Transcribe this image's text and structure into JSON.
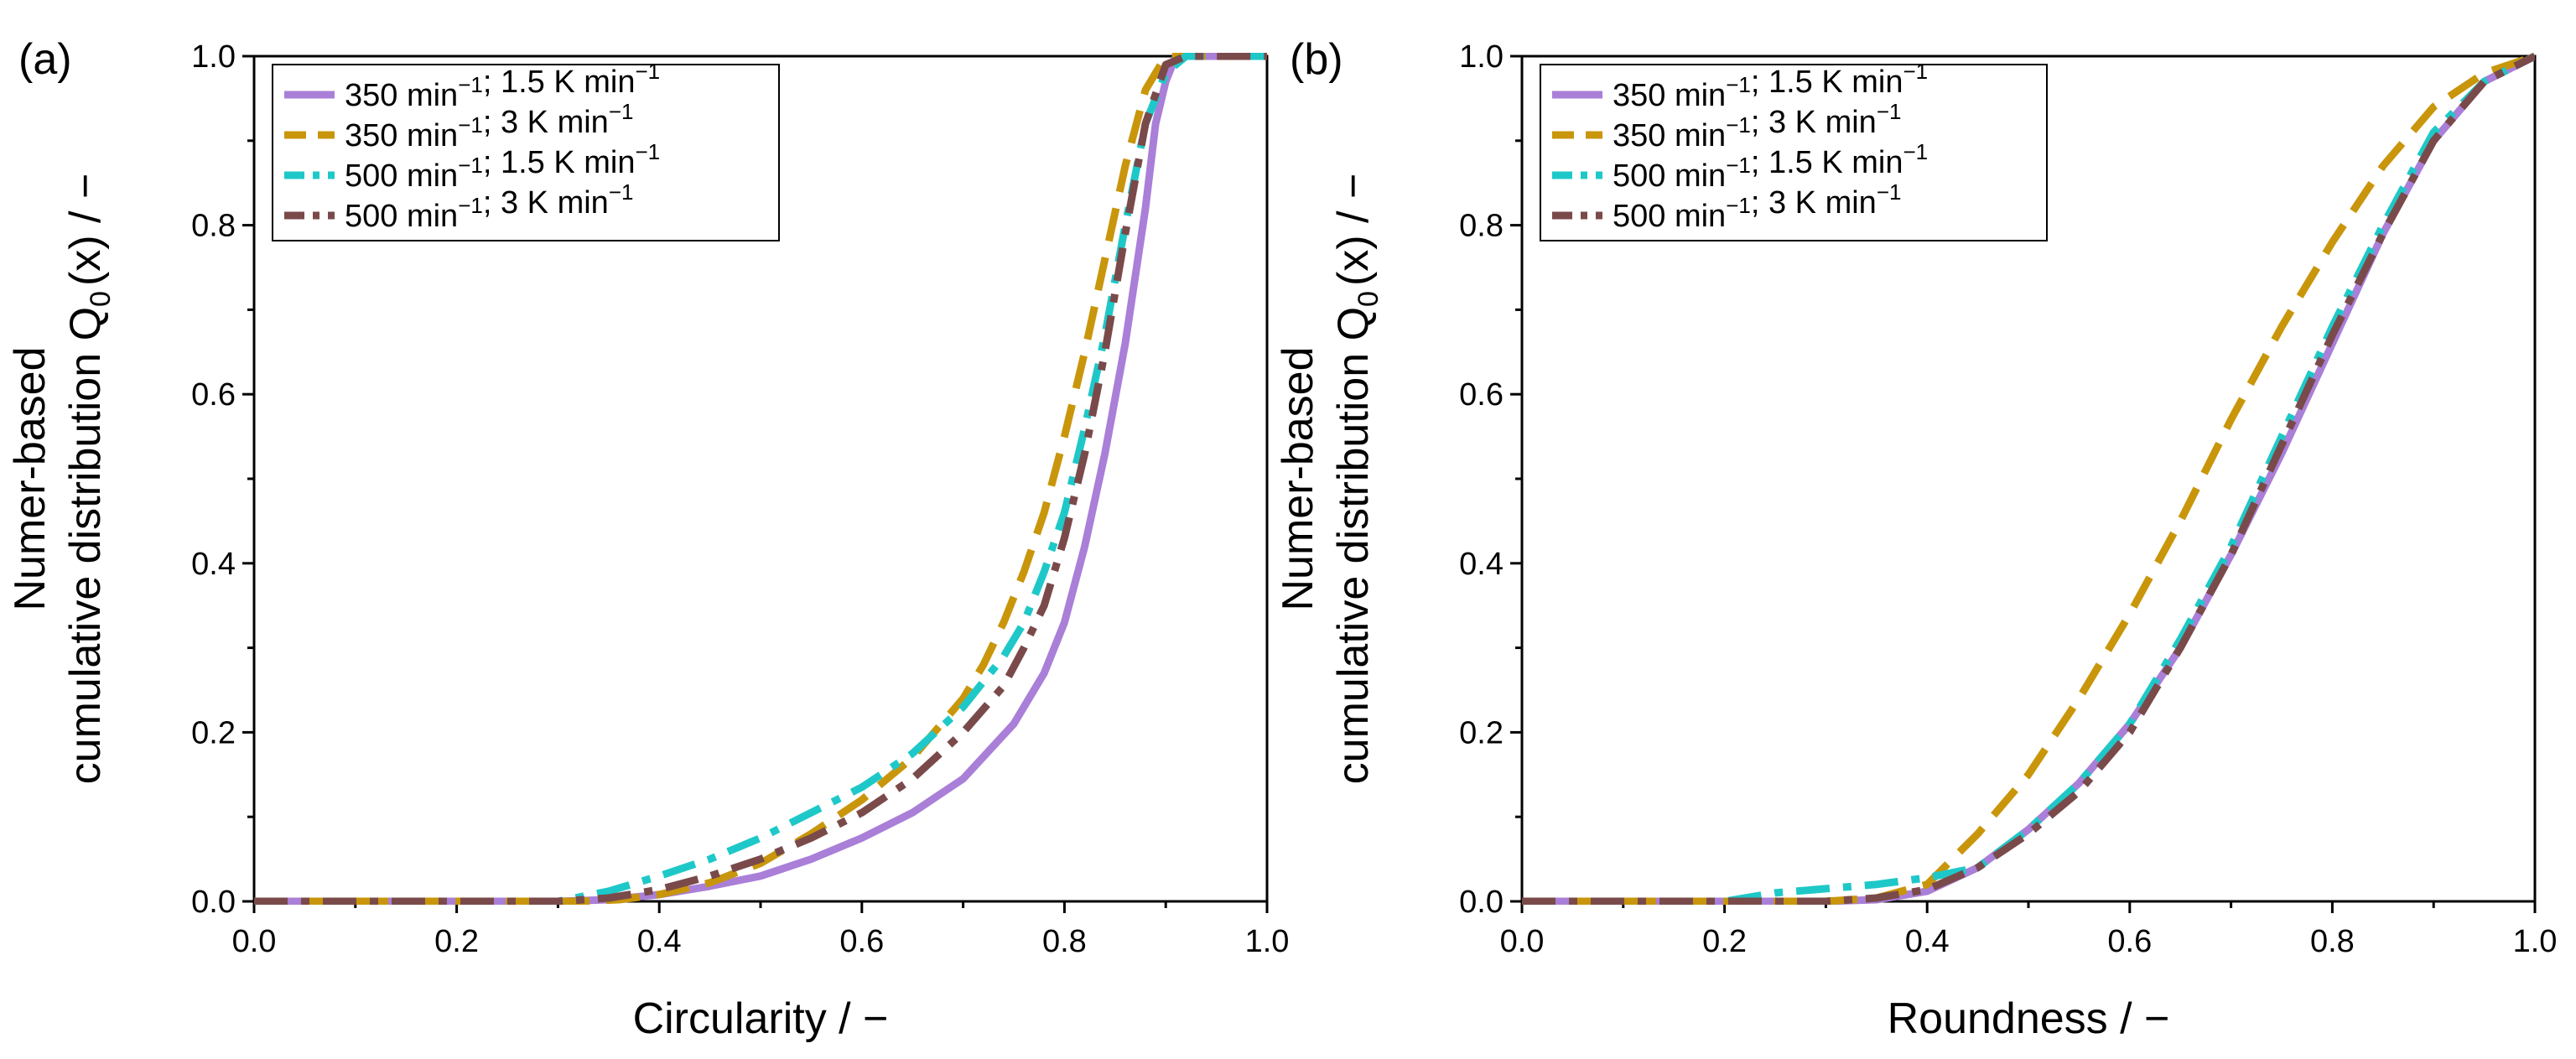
{
  "chart_data": [
    {
      "type": "line",
      "panel_label": "(a)",
      "xlabel": "Circularity / −",
      "ylabel_line1": "Numer-based",
      "ylabel_line2_pre": "cumulative distribution Q",
      "ylabel_line2_sub": "0",
      "ylabel_line2_post": "(x) / −",
      "xlim": [
        0,
        1
      ],
      "ylim": [
        0,
        1
      ],
      "xticks": [
        "0.0",
        "0.2",
        "0.4",
        "0.6",
        "0.8",
        "1.0"
      ],
      "yticks": [
        "0.0",
        "0.2",
        "0.4",
        "0.6",
        "0.8",
        "1.0"
      ],
      "legend_position": "top-left",
      "series": [
        {
          "name": "350 min⁻¹; 1.5 K min⁻¹",
          "color": "#a97fd8",
          "style": "solid",
          "x": [
            0.0,
            0.3,
            0.35,
            0.4,
            0.45,
            0.5,
            0.55,
            0.6,
            0.65,
            0.7,
            0.75,
            0.78,
            0.8,
            0.82,
            0.84,
            0.86,
            0.88,
            0.89,
            0.9,
            0.91,
            0.92,
            1.0
          ],
          "y": [
            0.0,
            0.0,
            0.002,
            0.008,
            0.018,
            0.03,
            0.05,
            0.075,
            0.105,
            0.145,
            0.21,
            0.27,
            0.33,
            0.42,
            0.53,
            0.66,
            0.82,
            0.92,
            0.97,
            1.0,
            1.0,
            1.0
          ]
        },
        {
          "name": "350 min⁻¹; 3 K min⁻¹",
          "color": "#c9960b",
          "style": "dash",
          "x": [
            0.0,
            0.32,
            0.36,
            0.4,
            0.45,
            0.5,
            0.55,
            0.6,
            0.65,
            0.7,
            0.72,
            0.74,
            0.76,
            0.78,
            0.8,
            0.82,
            0.84,
            0.86,
            0.88,
            0.9,
            0.92,
            1.0
          ],
          "y": [
            0.0,
            0.0,
            0.002,
            0.008,
            0.022,
            0.045,
            0.08,
            0.12,
            0.17,
            0.24,
            0.28,
            0.33,
            0.39,
            0.46,
            0.55,
            0.65,
            0.76,
            0.87,
            0.96,
            1.0,
            1.0,
            1.0
          ]
        },
        {
          "name": "500 min⁻¹; 1.5 K min⁻¹",
          "color": "#1fc8c8",
          "style": "dashdot",
          "x": [
            0.0,
            0.3,
            0.35,
            0.4,
            0.45,
            0.5,
            0.55,
            0.6,
            0.65,
            0.7,
            0.74,
            0.76,
            0.78,
            0.8,
            0.82,
            0.84,
            0.86,
            0.88,
            0.9,
            0.92,
            1.0
          ],
          "y": [
            0.0,
            0.0,
            0.012,
            0.03,
            0.05,
            0.075,
            0.105,
            0.135,
            0.175,
            0.23,
            0.29,
            0.33,
            0.39,
            0.46,
            0.56,
            0.67,
            0.8,
            0.92,
            0.98,
            1.0,
            1.0
          ]
        },
        {
          "name": "500 min⁻¹; 3 K min⁻¹",
          "color": "#7a4a4a",
          "style": "dashdot",
          "x": [
            0.0,
            0.3,
            0.35,
            0.4,
            0.45,
            0.5,
            0.55,
            0.6,
            0.65,
            0.7,
            0.74,
            0.76,
            0.78,
            0.8,
            0.82,
            0.84,
            0.86,
            0.88,
            0.9,
            0.92,
            1.0
          ],
          "y": [
            0.0,
            0.0,
            0.004,
            0.014,
            0.03,
            0.05,
            0.075,
            0.105,
            0.145,
            0.2,
            0.255,
            0.3,
            0.35,
            0.43,
            0.53,
            0.65,
            0.79,
            0.92,
            0.99,
            1.0,
            1.0
          ]
        }
      ]
    },
    {
      "type": "line",
      "panel_label": "(b)",
      "xlabel": "Roundness / −",
      "ylabel_line1": "Numer-based",
      "ylabel_line2_pre": "cumulative distribution Q",
      "ylabel_line2_sub": "0",
      "ylabel_line2_post": "(x) / −",
      "xlim": [
        0,
        1
      ],
      "ylim": [
        0,
        1
      ],
      "xticks": [
        "0.0",
        "0.2",
        "0.4",
        "0.6",
        "0.8",
        "1.0"
      ],
      "yticks": [
        "0.0",
        "0.2",
        "0.4",
        "0.6",
        "0.8",
        "1.0"
      ],
      "legend_position": "top-left",
      "series": [
        {
          "name": "350 min⁻¹; 1.5 K min⁻¹",
          "color": "#a97fd8",
          "style": "solid",
          "x": [
            0.0,
            0.3,
            0.35,
            0.4,
            0.45,
            0.5,
            0.55,
            0.6,
            0.65,
            0.7,
            0.75,
            0.8,
            0.85,
            0.9,
            0.95,
            1.0
          ],
          "y": [
            0.0,
            0.0,
            0.002,
            0.012,
            0.04,
            0.085,
            0.14,
            0.21,
            0.3,
            0.41,
            0.53,
            0.66,
            0.79,
            0.9,
            0.97,
            1.0
          ]
        },
        {
          "name": "350 min⁻¹; 3 K min⁻¹",
          "color": "#c9960b",
          "style": "dash",
          "x": [
            0.0,
            0.3,
            0.35,
            0.4,
            0.45,
            0.5,
            0.55,
            0.6,
            0.65,
            0.7,
            0.75,
            0.8,
            0.85,
            0.9,
            0.95,
            1.0
          ],
          "y": [
            0.0,
            0.0,
            0.004,
            0.02,
            0.08,
            0.15,
            0.24,
            0.34,
            0.45,
            0.57,
            0.68,
            0.78,
            0.87,
            0.94,
            0.98,
            1.0
          ]
        },
        {
          "name": "500 min⁻¹; 1.5 K min⁻¹",
          "color": "#1fc8c8",
          "style": "dashdot",
          "x": [
            0.0,
            0.2,
            0.25,
            0.3,
            0.35,
            0.4,
            0.45,
            0.5,
            0.55,
            0.6,
            0.65,
            0.7,
            0.75,
            0.8,
            0.85,
            0.9,
            0.95,
            1.0
          ],
          "y": [
            0.0,
            0.0,
            0.01,
            0.015,
            0.02,
            0.028,
            0.04,
            0.085,
            0.14,
            0.21,
            0.31,
            0.42,
            0.55,
            0.68,
            0.8,
            0.91,
            0.97,
            1.0
          ]
        },
        {
          "name": "500 min⁻¹; 3 K min⁻¹",
          "color": "#7a4a4a",
          "style": "dashdot",
          "x": [
            0.0,
            0.3,
            0.35,
            0.4,
            0.45,
            0.5,
            0.55,
            0.6,
            0.65,
            0.7,
            0.75,
            0.8,
            0.85,
            0.9,
            0.95,
            1.0
          ],
          "y": [
            0.0,
            0.0,
            0.004,
            0.014,
            0.04,
            0.08,
            0.13,
            0.2,
            0.3,
            0.41,
            0.54,
            0.67,
            0.79,
            0.9,
            0.97,
            1.0
          ]
        }
      ]
    }
  ]
}
